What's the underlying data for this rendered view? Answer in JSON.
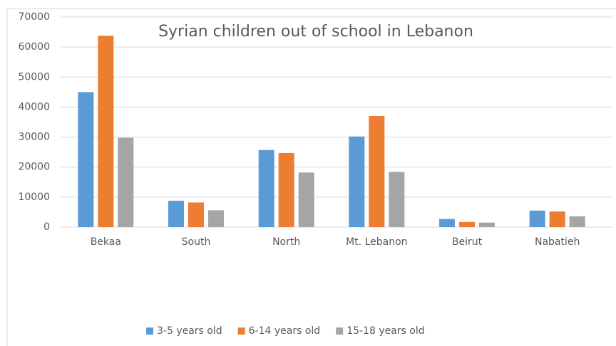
{
  "chart_data": {
    "type": "bar",
    "title": "Syrian children out of school in Lebanon",
    "categories": [
      "Bekaa",
      "South",
      "North",
      "Mt. Lebanon",
      "Beirut",
      "Nabatieh"
    ],
    "series": [
      {
        "name": "3-5 years old",
        "color": "#5b9bd5",
        "values": [
          45000,
          8800,
          25700,
          30200,
          2700,
          5500
        ]
      },
      {
        "name": "6-14 years old",
        "color": "#ed7d31",
        "values": [
          63800,
          8200,
          24700,
          37000,
          1700,
          5200
        ]
      },
      {
        "name": "15-18 years old",
        "color": "#a5a5a5",
        "values": [
          29800,
          5600,
          18200,
          18400,
          1500,
          3600
        ]
      }
    ],
    "ylim": [
      0,
      70000
    ],
    "yticks": [
      0,
      10000,
      20000,
      30000,
      40000,
      50000,
      60000,
      70000
    ],
    "grid": true,
    "legend": "bottom"
  }
}
